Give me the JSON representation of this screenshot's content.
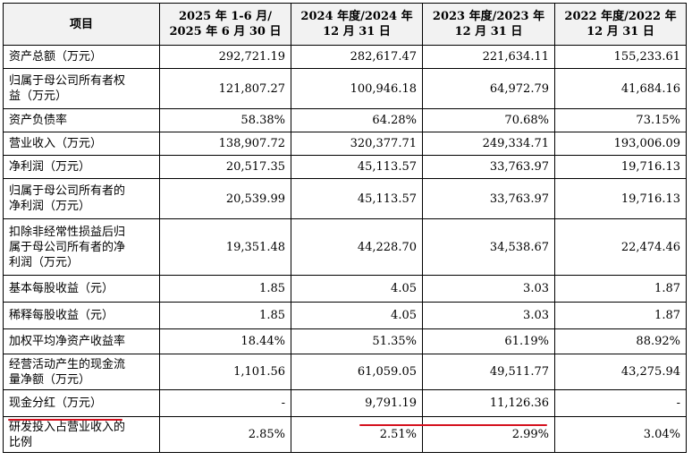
{
  "header": {
    "item": "项目",
    "cols": [
      [
        "2025 年 1-6 月/",
        "2025 年 6 月 30 日"
      ],
      [
        "2024 年度/2024 年",
        "12 月 31 日"
      ],
      [
        "2023 年度/2023 年",
        "12 月 31 日"
      ],
      [
        "2022 年度/2022 年",
        "12 月 31 日"
      ]
    ]
  },
  "rows": [
    {
      "label": [
        "资产总额（万元）"
      ],
      "values": [
        "292,721.19",
        "282,617.47",
        "221,634.11",
        "155,233.61"
      ]
    },
    {
      "label": [
        "归属于母公司所有者权",
        "益（万元）"
      ],
      "values": [
        "121,807.27",
        "100,946.18",
        "64,972.79",
        "41,684.16"
      ]
    },
    {
      "label": [
        "资产负债率"
      ],
      "values": [
        "58.38%",
        "64.28%",
        "70.68%",
        "73.15%"
      ]
    },
    {
      "label": [
        "营业收入（万元）"
      ],
      "values": [
        "138,907.72",
        "320,377.71",
        "249,334.71",
        "193,006.09"
      ]
    },
    {
      "label": [
        "净利润（万元）"
      ],
      "values": [
        "20,517.35",
        "45,113.57",
        "33,763.97",
        "19,716.13"
      ]
    },
    {
      "label": [
        "归属于母公司所有者的",
        "净利润（万元）"
      ],
      "values": [
        "20,539.99",
        "45,113.57",
        "33,763.97",
        "19,716.13"
      ]
    },
    {
      "label": [
        "扣除非经常性损益后归",
        "属于母公司所有者的净",
        "利润（万元）"
      ],
      "values": [
        "19,351.48",
        "44,228.70",
        "34,538.67",
        "22,474.46"
      ]
    },
    {
      "label": [
        "基本每股收益（元）"
      ],
      "values": [
        "1.85",
        "4.05",
        "3.03",
        "1.87"
      ]
    },
    {
      "label": [
        "稀释每股收益（元）"
      ],
      "values": [
        "1.85",
        "4.05",
        "3.03",
        "1.87"
      ]
    },
    {
      "label": [
        "加权平均净资产收益率"
      ],
      "values": [
        "18.44%",
        "51.35%",
        "61.19%",
        "88.92%"
      ]
    },
    {
      "label": [
        "经营活动产生的现金流",
        "量净额（万元）"
      ],
      "values": [
        "1,101.56",
        "61,059.05",
        "49,511.77",
        "43,275.94"
      ]
    },
    {
      "label": [
        "现金分红（万元）"
      ],
      "values": [
        "-",
        "9,791.19",
        "11,126.36",
        "-"
      ]
    },
    {
      "label": [
        "研发投入占营业收入的",
        "比例"
      ],
      "values": [
        "2.85%",
        "2.51%",
        "2.99%",
        "3.04%"
      ]
    }
  ],
  "annotation_color": "#d4111e"
}
